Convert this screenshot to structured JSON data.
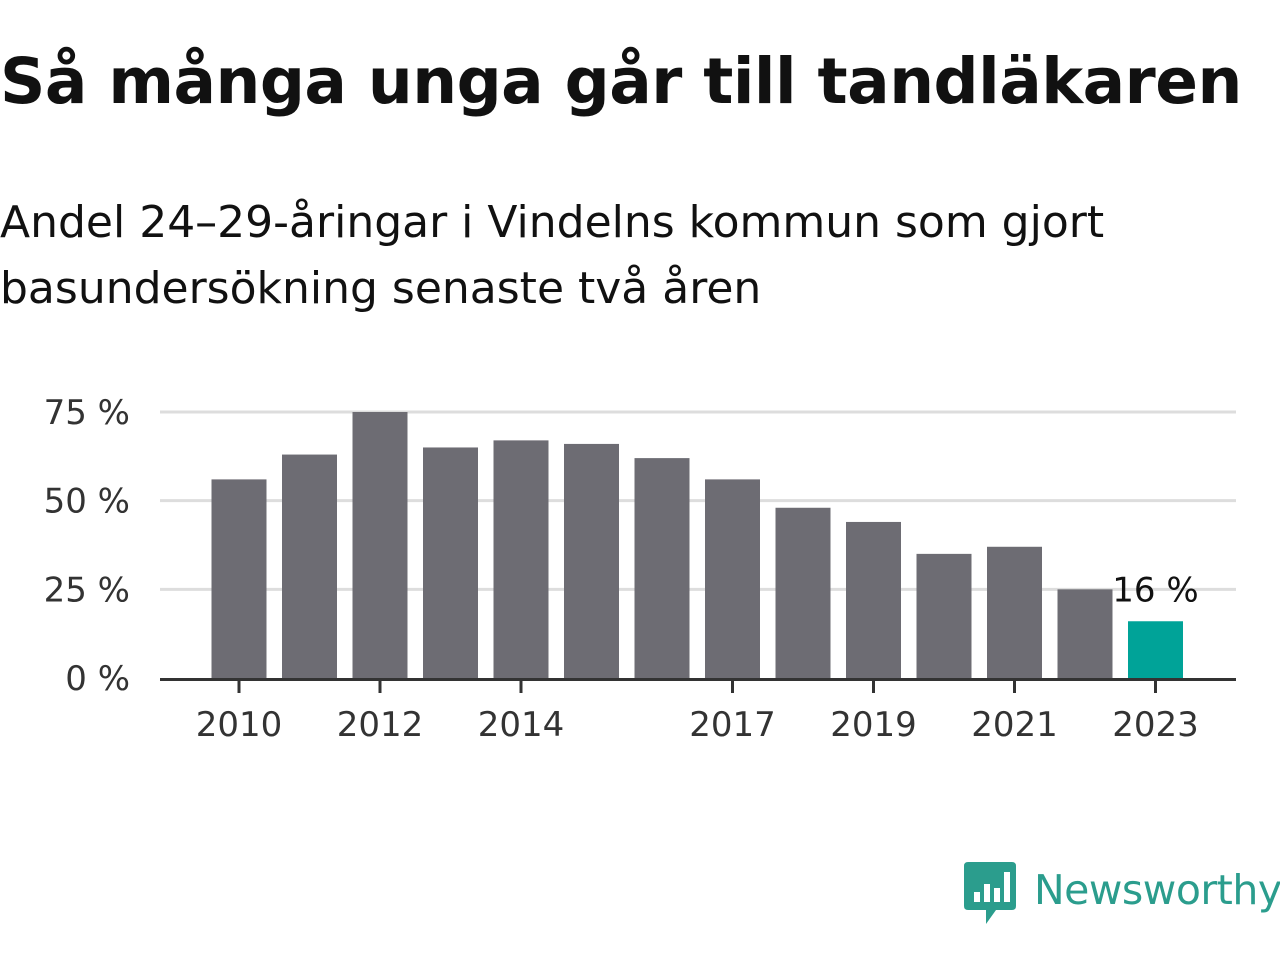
{
  "title": "Så många unga går till tandläkaren",
  "subtitle": "Andel 24–29-åringar i Vindelns kommun som gjort basundersökning senaste två åren",
  "colors": {
    "bar": "#6d6c73",
    "highlight": "#00a398",
    "grid": "#dddddd",
    "axis": "#333333",
    "brand": "#2b9d8d"
  },
  "chart_data": {
    "type": "bar",
    "title": "",
    "xlabel": "",
    "ylabel": "",
    "categories": [
      "2010",
      "2011",
      "2012",
      "2013",
      "2014",
      "2015",
      "2016",
      "2017",
      "2018",
      "2019",
      "2020",
      "2021",
      "2022",
      "2023"
    ],
    "values": [
      56,
      63,
      75,
      65,
      67,
      66,
      62,
      56,
      48,
      44,
      35,
      37,
      25,
      16
    ],
    "highlight_category": "2023",
    "highlight_label": "16 %",
    "ylim": [
      0,
      75
    ],
    "yticks": [
      {
        "value": 0,
        "label": "0 %"
      },
      {
        "value": 25,
        "label": "25 %"
      },
      {
        "value": 50,
        "label": "50 %"
      },
      {
        "value": 75,
        "label": "75 %"
      }
    ],
    "xtick_labels": [
      "2010",
      "2012",
      "2014",
      "2017",
      "2019",
      "2021",
      "2023"
    ],
    "grid": true
  },
  "logo": {
    "text": "Newsworthy",
    "icon": "bar-chart-speech-bubble-icon"
  }
}
